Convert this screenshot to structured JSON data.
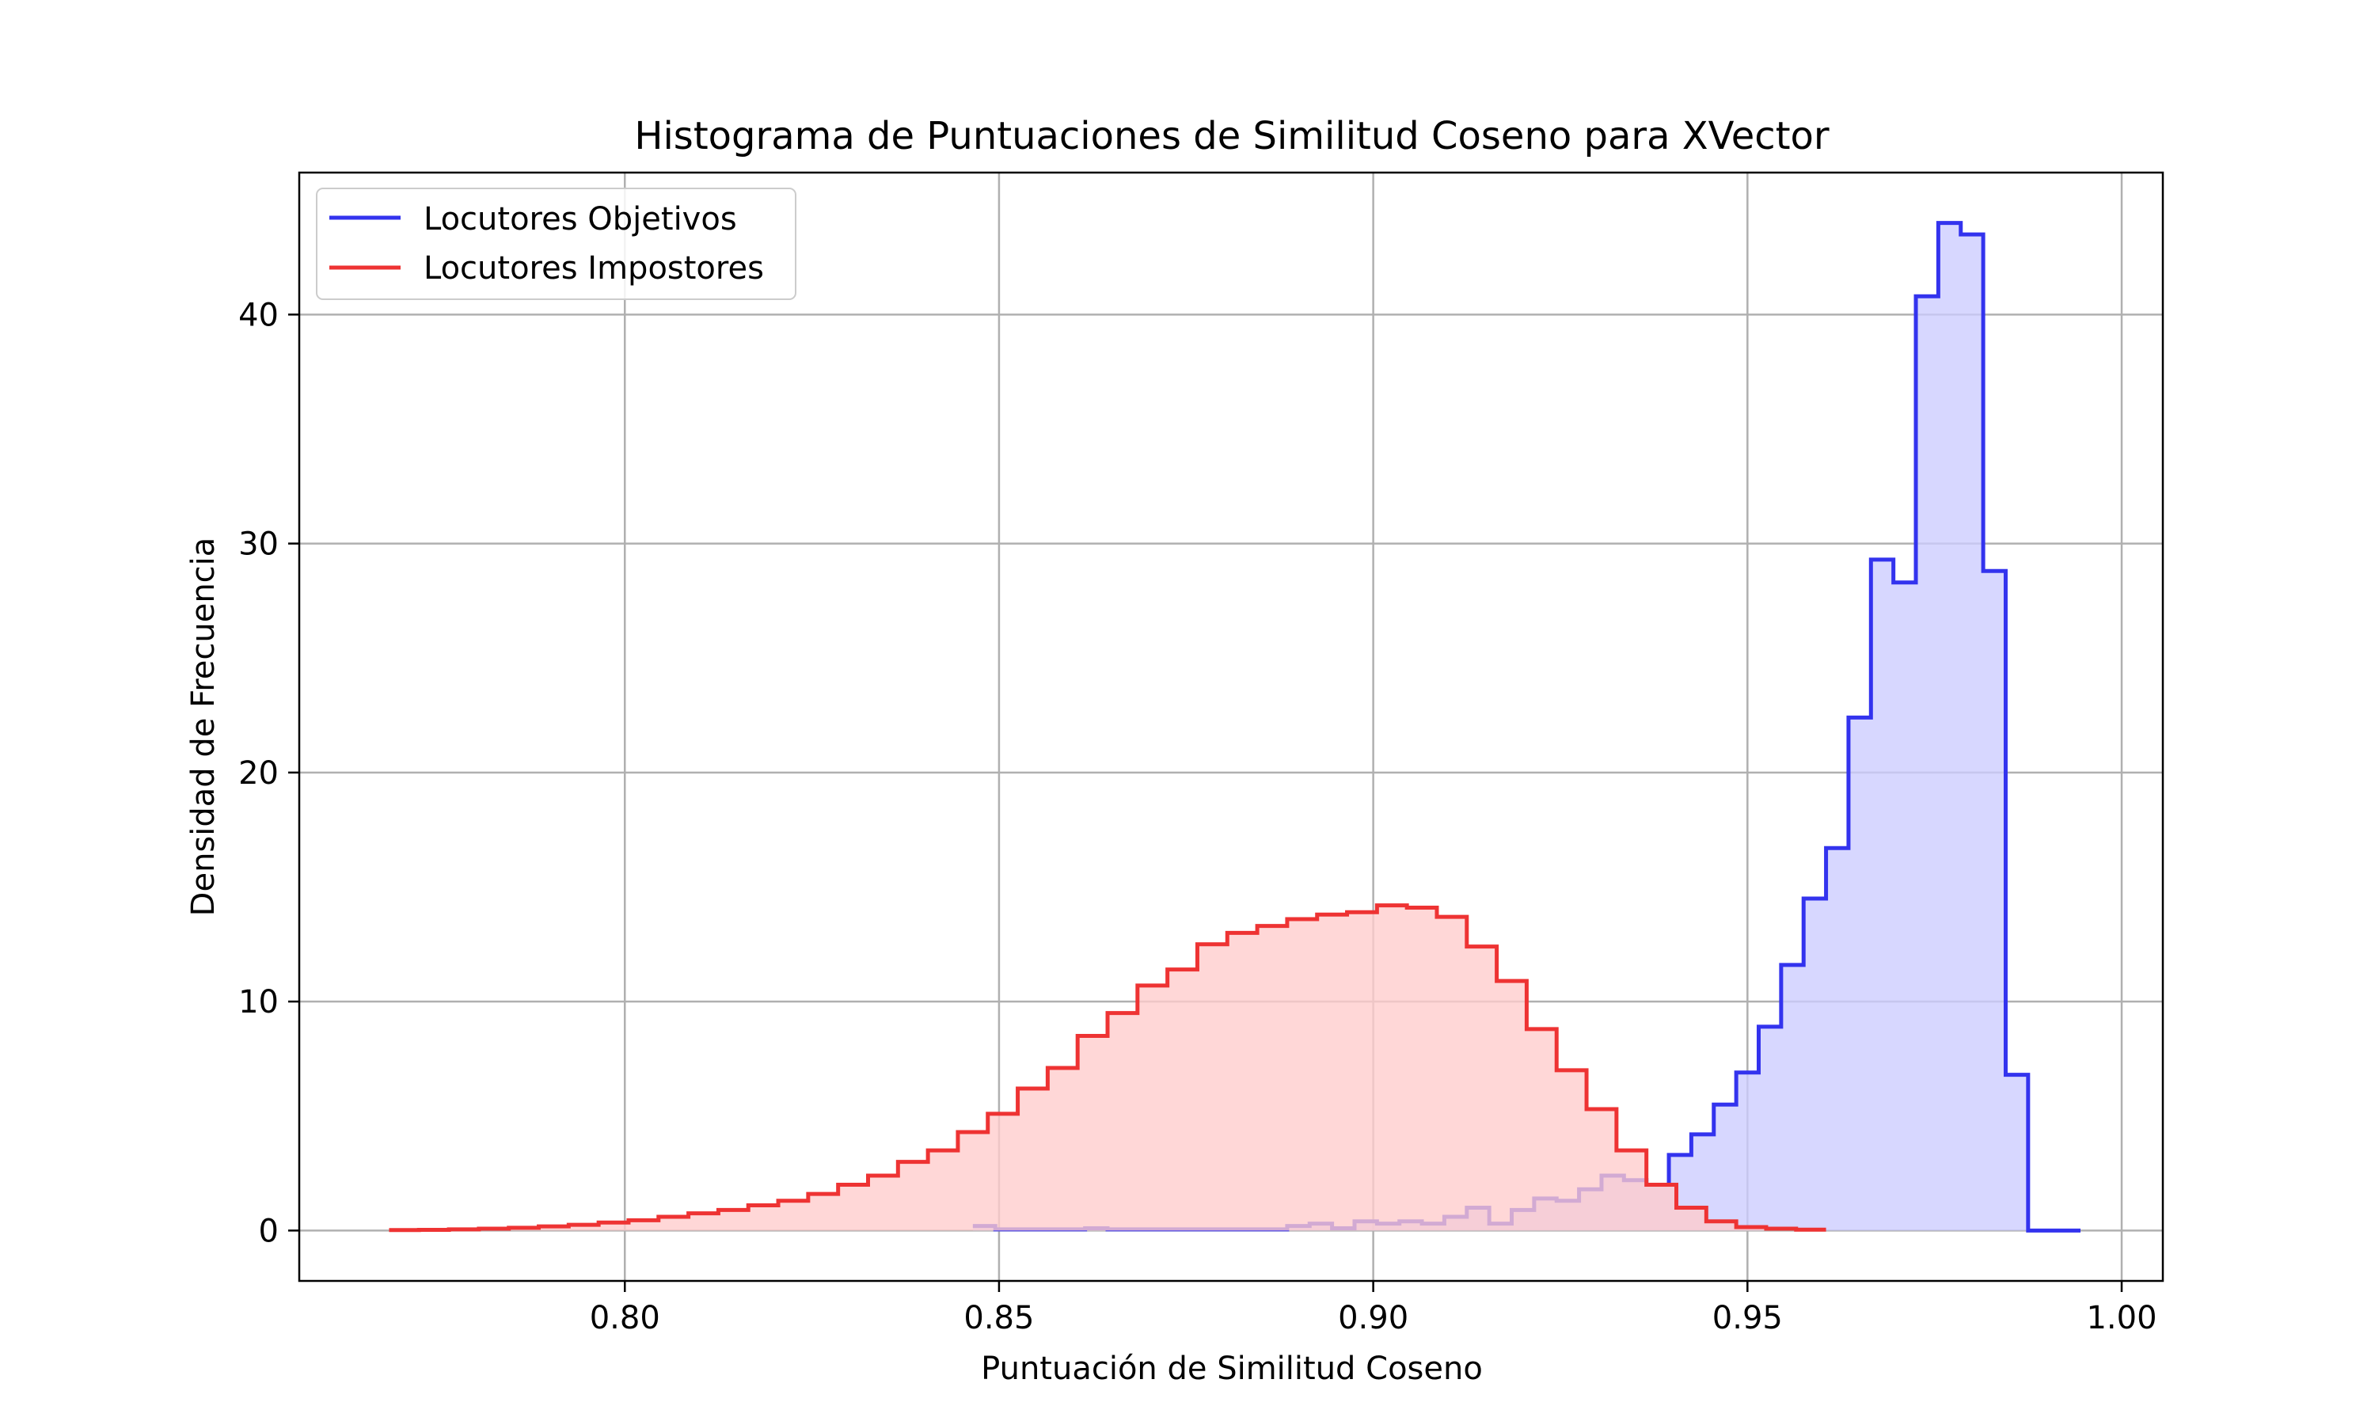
{
  "chart_data": {
    "type": "histogram",
    "title": "Histograma de Puntuaciones de Similitud Coseno para XVector",
    "xlabel": "Puntuación de Similitud Coseno",
    "ylabel": "Densidad de Frecuencia",
    "xlim": [
      0.7565,
      1.0055
    ],
    "ylim": [
      -2.2,
      46.2
    ],
    "xticks": [
      0.8,
      0.85,
      0.9,
      0.95,
      1.0
    ],
    "xtick_labels": [
      "0.80",
      "0.85",
      "0.90",
      "0.95",
      "1.00"
    ],
    "yticks": [
      0,
      10,
      20,
      30,
      40
    ],
    "ytick_labels": [
      "0",
      "10",
      "20",
      "30",
      "40"
    ],
    "grid": true,
    "legend_position": "top-left",
    "series": [
      {
        "name": "Locutores Objetivos",
        "color": "#3333ee",
        "fill": "#ccccff",
        "edges": [
          0.8465,
          0.8495,
          0.8525,
          0.8555,
          0.8585,
          0.8615,
          0.8645,
          0.8675,
          0.8705,
          0.8735,
          0.8765,
          0.8795,
          0.8825,
          0.8855,
          0.8885,
          0.8915,
          0.8945,
          0.8975,
          0.9005,
          0.9035,
          0.9065,
          0.9095,
          0.9125,
          0.9155,
          0.9185,
          0.9215,
          0.9245,
          0.9275,
          0.9305,
          0.9335,
          0.9365,
          0.9395,
          0.9425,
          0.9455,
          0.9485,
          0.9515,
          0.9545,
          0.9575,
          0.9605,
          0.9635,
          0.9665,
          0.9695,
          0.9725,
          0.9755,
          0.9785,
          0.9815,
          0.9845,
          0.9875,
          0.9905,
          0.9935,
          0.9945
        ],
        "values": [
          0.2,
          0.05,
          0.05,
          0.05,
          0.05,
          0.1,
          0.05,
          0.05,
          0.05,
          0.05,
          0.05,
          0.05,
          0.05,
          0.05,
          0.2,
          0.3,
          0.1,
          0.4,
          0.3,
          0.4,
          0.3,
          0.6,
          1.0,
          0.3,
          0.9,
          1.4,
          1.3,
          1.8,
          2.4,
          2.2,
          2.0,
          3.3,
          4.2,
          5.5,
          6.9,
          8.9,
          11.6,
          14.5,
          16.7,
          22.4,
          29.3,
          28.3,
          40.8,
          44.0,
          43.5,
          28.8,
          6.8,
          0,
          0,
          0
        ],
        "bin_count": 47
      },
      {
        "name": "Locutores Impostores",
        "color": "#ee3333",
        "fill": "#ffcccc",
        "edges": [
          0.7685,
          0.7725,
          0.7765,
          0.7805,
          0.7845,
          0.7885,
          0.7925,
          0.7965,
          0.8005,
          0.8045,
          0.8085,
          0.8125,
          0.8165,
          0.8205,
          0.8245,
          0.8285,
          0.8325,
          0.8365,
          0.8405,
          0.8445,
          0.8485,
          0.8525,
          0.8565,
          0.8605,
          0.8645,
          0.8685,
          0.8725,
          0.8765,
          0.8805,
          0.8845,
          0.8885,
          0.8925,
          0.8965,
          0.9005,
          0.9045,
          0.9085,
          0.9125,
          0.9165,
          0.9205,
          0.9245,
          0.9285,
          0.9325,
          0.9365,
          0.9405,
          0.9445,
          0.9485,
          0.9525,
          0.9565,
          0.9605
        ],
        "values": [
          0.02,
          0.03,
          0.05,
          0.08,
          0.12,
          0.18,
          0.25,
          0.35,
          0.45,
          0.6,
          0.75,
          0.9,
          1.1,
          1.3,
          1.6,
          2.0,
          2.4,
          3.0,
          3.5,
          4.3,
          5.1,
          6.2,
          7.1,
          8.5,
          9.5,
          10.7,
          11.4,
          12.5,
          13.0,
          13.3,
          13.6,
          13.8,
          13.9,
          14.2,
          14.1,
          13.7,
          12.4,
          10.9,
          8.8,
          7.0,
          5.3,
          3.5,
          2.0,
          1.0,
          0.4,
          0.15,
          0.08,
          0.04
        ]
      }
    ]
  }
}
